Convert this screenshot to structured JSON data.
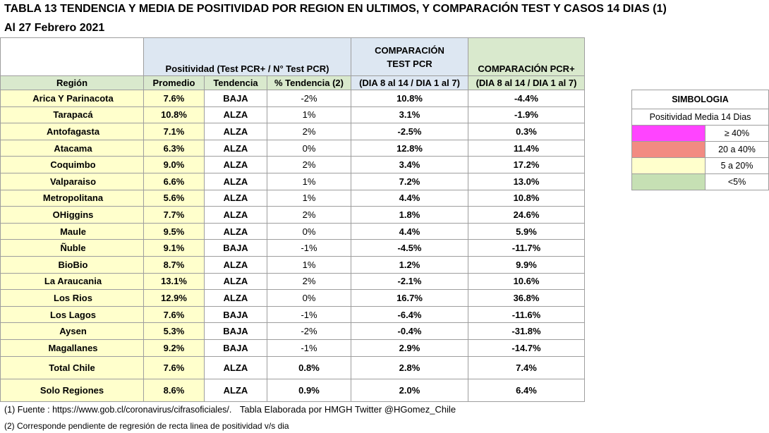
{
  "title": "TABLA 13 TENDENCIA Y MEDIA DE POSITIVIDAD POR REGION EN ULTIMOS, Y COMPARACIÓN TEST Y CASOS  14 DIAS (1)",
  "subtitle": "Al 27 Febrero 2021",
  "header": {
    "positividad_group": "Positividad (Test PCR+ / N° Test PCR)",
    "comp_test": "COMPARACIÓN TEST PCR",
    "comp_pcr": "COMPARACIÓN PCR+",
    "col_region": "Región",
    "col_promedio": "Promedio",
    "col_tendencia": "Tendencia",
    "col_pct_tendencia": "% Tendencia (2)",
    "col_comp_test": "(DIA 8 al 14 / DIA 1 al 7)",
    "col_comp_pcr": "(DIA 8 al 14 / DIA 1 al 7)"
  },
  "rows": [
    {
      "region": "Arica Y Parinacota",
      "promedio": "7.6%",
      "tendencia": "BAJA",
      "pct": "-2%",
      "test": "10.8%",
      "pcr": "-4.4%"
    },
    {
      "region": "Tarapacá",
      "promedio": "10.8%",
      "tendencia": "ALZA",
      "pct": "1%",
      "test": "3.1%",
      "pcr": "-1.9%"
    },
    {
      "region": "Antofagasta",
      "promedio": "7.1%",
      "tendencia": "ALZA",
      "pct": "2%",
      "test": "-2.5%",
      "pcr": "0.3%"
    },
    {
      "region": "Atacama",
      "promedio": "6.3%",
      "tendencia": "ALZA",
      "pct": "0%",
      "test": "12.8%",
      "pcr": "11.4%"
    },
    {
      "region": "Coquimbo",
      "promedio": "9.0%",
      "tendencia": "ALZA",
      "pct": "2%",
      "test": "3.4%",
      "pcr": "17.2%"
    },
    {
      "region": "Valparaiso",
      "promedio": "6.6%",
      "tendencia": "ALZA",
      "pct": "1%",
      "test": "7.2%",
      "pcr": "13.0%"
    },
    {
      "region": "Metropolitana",
      "promedio": "5.6%",
      "tendencia": "ALZA",
      "pct": "1%",
      "test": "4.4%",
      "pcr": "10.8%"
    },
    {
      "region": "OHiggins",
      "promedio": "7.7%",
      "tendencia": "ALZA",
      "pct": "2%",
      "test": "1.8%",
      "pcr": "24.6%"
    },
    {
      "region": "Maule",
      "promedio": "9.5%",
      "tendencia": "ALZA",
      "pct": "0%",
      "test": "4.4%",
      "pcr": "5.9%"
    },
    {
      "region": "Ñuble",
      "promedio": "9.1%",
      "tendencia": "BAJA",
      "pct": "-1%",
      "test": "-4.5%",
      "pcr": "-11.7%"
    },
    {
      "region": "BioBio",
      "promedio": "8.7%",
      "tendencia": "ALZA",
      "pct": "1%",
      "test": "1.2%",
      "pcr": "9.9%"
    },
    {
      "region": "La Araucania",
      "promedio": "13.1%",
      "tendencia": "ALZA",
      "pct": "2%",
      "test": "-2.1%",
      "pcr": "10.6%"
    },
    {
      "region": "Los Rios",
      "promedio": "12.9%",
      "tendencia": "ALZA",
      "pct": "0%",
      "test": "16.7%",
      "pcr": "36.8%"
    },
    {
      "region": "Los Lagos",
      "promedio": "7.6%",
      "tendencia": "BAJA",
      "pct": "-1%",
      "test": "-6.4%",
      "pcr": "-11.6%"
    },
    {
      "region": "Aysen",
      "promedio": "5.3%",
      "tendencia": "BAJA",
      "pct": "-2%",
      "test": "-0.4%",
      "pcr": "-31.8%"
    },
    {
      "region": "Magallanes",
      "promedio": "9.2%",
      "tendencia": "BAJA",
      "pct": "-1%",
      "test": "2.9%",
      "pcr": "-14.7%"
    }
  ],
  "totals": [
    {
      "region": "Total Chile",
      "promedio": "7.6%",
      "tendencia": "ALZA",
      "pct": "0.8%",
      "test": "2.8%",
      "pcr": "7.4%"
    },
    {
      "region": "Solo Regiones",
      "promedio": "8.6%",
      "tendencia": "ALZA",
      "pct": "0.9%",
      "test": "2.0%",
      "pcr": "6.4%"
    }
  ],
  "legend": {
    "title": "SIMBOLOGIA",
    "subtitle": "Positividad Media 14 Dias",
    "items": [
      {
        "color": "#ff44ff",
        "label": "≥ 40%"
      },
      {
        "color": "#f28b82",
        "label": "20 a 40%"
      },
      {
        "color": "#ffffcc",
        "label": "5 a 20%"
      },
      {
        "color": "#c6e0b4",
        "label": "<5%"
      }
    ]
  },
  "footer": {
    "source": "(1) Fuente : https://www.gob.cl/coronavirus/cifrasoficiales/.",
    "credit": "Tabla Elaborada por HMGH Twitter @HGomez_Chile",
    "note": "(2) Corresponde pendiente de regresión de recta linea de positividad v/s dia"
  },
  "colors": {
    "yellow_cell": "#ffffcc",
    "blue_header": "#dde7f2",
    "green_header": "#d9e9cd",
    "border": "#9e9e9e"
  }
}
